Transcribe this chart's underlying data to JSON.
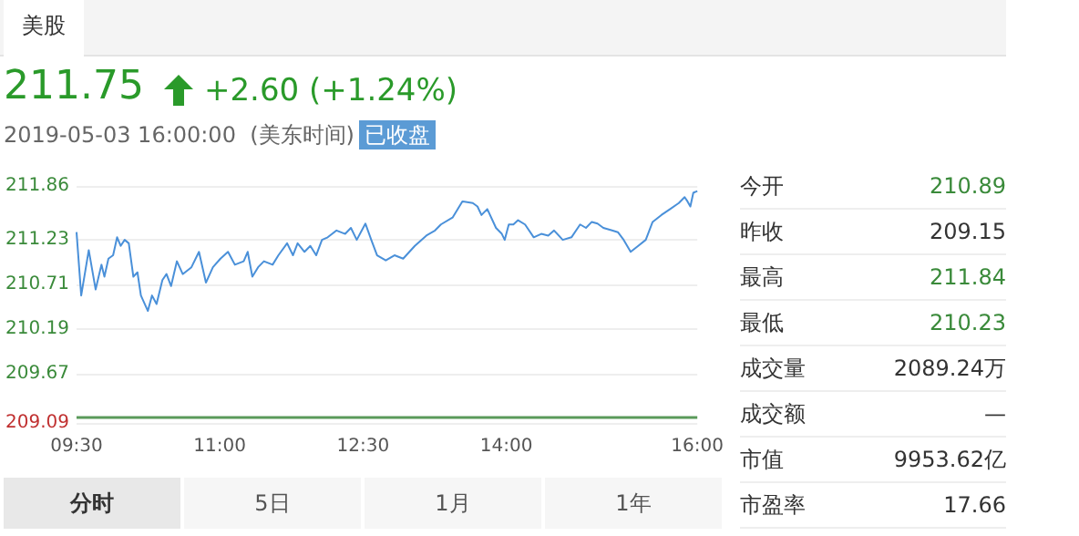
{
  "chart_data": [
    {
      "type": "line",
      "title": "211.75",
      "subtitle": "2019-05-03 16:00:00  (美东时间)",
      "annotations": [
        "+2.60 (+1.24%)",
        "已收盘",
        "美股",
        "分时",
        "5日",
        "1月",
        "1年"
      ],
      "x": [
        9.5,
        9.549,
        9.628,
        9.7,
        9.761,
        9.792,
        9.834,
        9.883,
        9.925,
        9.962,
        10.004,
        10.047,
        10.095,
        10.138,
        10.174,
        10.247,
        10.29,
        10.338,
        10.399,
        10.442,
        10.49,
        10.551,
        10.612,
        10.703,
        10.782,
        10.855,
        10.928,
        11.007,
        11.086,
        11.158,
        11.25,
        11.292,
        11.341,
        11.401,
        11.462,
        11.553,
        11.614,
        11.705,
        11.766,
        11.815,
        11.887,
        11.948,
        12.009,
        12.07,
        12.13,
        12.222,
        12.313,
        12.373,
        12.434,
        12.525,
        12.586,
        12.647,
        12.738,
        12.829,
        12.92,
        13.042,
        13.163,
        13.254,
        13.315,
        13.437,
        13.54,
        13.649,
        13.698,
        13.74,
        13.801,
        13.892,
        13.953,
        13.983,
        14.026,
        14.074,
        14.123,
        14.196,
        14.287,
        14.366,
        14.439,
        14.5,
        14.591,
        14.682,
        14.773,
        14.834,
        14.895,
        14.955,
        15.016,
        15.107,
        15.168,
        15.229,
        15.302,
        15.381,
        15.46,
        15.532,
        15.623,
        15.715,
        15.806,
        15.867,
        15.897,
        15.927,
        15.958,
        16.0
      ],
      "values": [
        211.32,
        210.58,
        211.11,
        210.65,
        210.94,
        210.8,
        211.01,
        211.05,
        211.26,
        211.16,
        211.23,
        211.19,
        210.8,
        210.85,
        210.58,
        210.4,
        210.58,
        210.48,
        210.76,
        210.83,
        210.69,
        210.98,
        210.83,
        210.91,
        211.09,
        210.73,
        210.91,
        211.01,
        211.09,
        210.94,
        210.98,
        211.09,
        210.8,
        210.91,
        210.98,
        210.94,
        211.05,
        211.19,
        211.05,
        211.19,
        211.09,
        211.16,
        211.05,
        211.23,
        211.26,
        211.34,
        211.3,
        211.37,
        211.23,
        211.42,
        211.23,
        211.05,
        210.99,
        211.05,
        211.01,
        211.16,
        211.28,
        211.34,
        211.41,
        211.49,
        211.68,
        211.66,
        211.62,
        211.52,
        211.59,
        211.37,
        211.3,
        211.23,
        211.41,
        211.41,
        211.46,
        211.41,
        211.26,
        211.3,
        211.28,
        211.34,
        211.23,
        211.26,
        211.41,
        211.37,
        211.44,
        211.42,
        211.37,
        211.34,
        211.32,
        211.23,
        211.09,
        211.16,
        211.23,
        211.44,
        211.52,
        211.59,
        211.66,
        211.73,
        211.68,
        211.62,
        211.78,
        211.8
      ],
      "color": "#4a90d9",
      "marker": "none",
      "line_style": "solid",
      "grid": "y",
      "xlim": [
        9.5,
        16
      ],
      "xticks": [
        {
          "value": 9.5,
          "label": "09:30"
        },
        {
          "value": 11,
          "label": "11:00"
        },
        {
          "value": 12.5,
          "label": "12:30"
        },
        {
          "value": 14,
          "label": "14:00"
        },
        {
          "value": 16,
          "label": "16:00"
        }
      ],
      "ylim": [
        209.09,
        211.86
      ],
      "yticks": [
        209.09,
        209.67,
        210.19,
        210.71,
        211.23,
        211.86
      ],
      "ref_lines": [
        {
          "axis": "y",
          "value": 209.15,
          "color": "#5a9a5a"
        }
      ]
    },
    {
      "type": "other",
      "categories": [
        "今开",
        "昨收",
        "最高",
        "最低",
        "成交量",
        "成交额",
        "市值",
        "市盈率"
      ],
      "value_labels": [
        "210.89",
        "209.15",
        "211.84",
        "210.23",
        "2089.24万",
        "—",
        "9953.62亿",
        "17.66"
      ],
      "colors": [
        "#3a8a3a",
        "#333333",
        "#3a8a3a",
        "#3a8a3a",
        "#333333",
        "#333333",
        "#333333",
        "#333333"
      ]
    }
  ]
}
